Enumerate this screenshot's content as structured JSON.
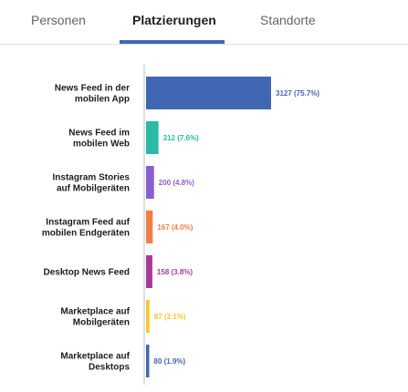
{
  "tabs": [
    {
      "label": "Personen",
      "active": false
    },
    {
      "label": "Platzierungen",
      "active": true
    },
    {
      "label": "Standorte",
      "active": false
    }
  ],
  "accent_color": "#4267b2",
  "chart_data": {
    "type": "bar",
    "orientation": "horizontal",
    "categories": [
      [
        "News Feed in der",
        "mobilen App"
      ],
      [
        "News Feed im",
        "mobilen Web"
      ],
      [
        "Instagram Stories",
        "auf Mobilgeräten"
      ],
      [
        "Instagram Feed auf",
        "mobilen Endgeräten"
      ],
      [
        "Desktop News Feed"
      ],
      [
        "Marketplace auf",
        "Mobilgeräten"
      ],
      [
        "Marketplace auf",
        "Desktops"
      ]
    ],
    "values": [
      3127,
      312,
      200,
      167,
      158,
      87,
      80
    ],
    "value_labels": [
      "3127 (75.7%)",
      "312 (7.6%)",
      "200 (4.8%)",
      "167 (4.0%)",
      "158 (3.8%)",
      "87 (2.1%)",
      "80 (1.9%)"
    ],
    "colors": [
      "#4267b2",
      "#2abba7",
      "#8c5fd0",
      "#f07f47",
      "#a93a99",
      "#f7c92d",
      "#4267b2"
    ],
    "value_label_colors": [
      "#4267b2",
      "#2abba7",
      "#8c5fd0",
      "#f07f47",
      "#a93a99",
      "#f7c92d",
      "#4267b2"
    ],
    "xlim": [
      0,
      3127
    ],
    "grid": false,
    "legend": "none"
  }
}
